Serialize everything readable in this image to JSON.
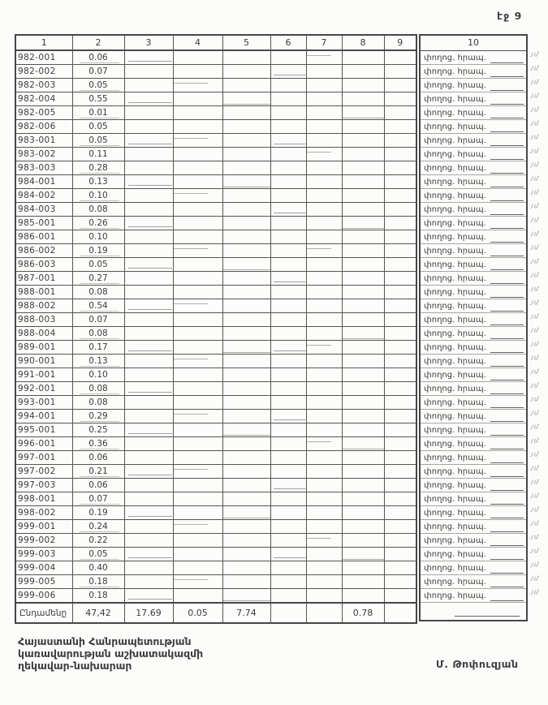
{
  "page": {
    "label": "էջ 9"
  },
  "colors": {
    "ink": "#3a3a3a",
    "border": "#4a4a4a",
    "paper": "#fcfcfa"
  },
  "table": {
    "headers": [
      "1",
      "2",
      "3",
      "4",
      "5",
      "6",
      "7",
      "8",
      "9",
      "10"
    ],
    "col10_text": "փողոց. հրապ.",
    "edge_mark": "յմ",
    "rows": [
      {
        "code": "982-001",
        "value": "0.06"
      },
      {
        "code": "982-002",
        "value": "0.07"
      },
      {
        "code": "982-003",
        "value": "0.05"
      },
      {
        "code": "982-004",
        "value": "0.55"
      },
      {
        "code": "982-005",
        "value": "0.01"
      },
      {
        "code": "982-006",
        "value": "0.05"
      },
      {
        "code": "983-001",
        "value": "0.05"
      },
      {
        "code": "983-002",
        "value": "0.11"
      },
      {
        "code": "983-003",
        "value": "0.28"
      },
      {
        "code": "984-001",
        "value": "0.13"
      },
      {
        "code": "984-002",
        "value": "0.10"
      },
      {
        "code": "984-003",
        "value": "0.08"
      },
      {
        "code": "985-001",
        "value": "0.26"
      },
      {
        "code": "986-001",
        "value": "0.10"
      },
      {
        "code": "986-002",
        "value": "0.19"
      },
      {
        "code": "986-003",
        "value": "0.05"
      },
      {
        "code": "987-001",
        "value": "0.27"
      },
      {
        "code": "988-001",
        "value": "0.08"
      },
      {
        "code": "988-002",
        "value": "0.54"
      },
      {
        "code": "988-003",
        "value": "0.07"
      },
      {
        "code": "988-004",
        "value": "0.08"
      },
      {
        "code": "989-001",
        "value": "0.17"
      },
      {
        "code": "990-001",
        "value": "0.13"
      },
      {
        "code": "991-001",
        "value": "0.10"
      },
      {
        "code": "992-001",
        "value": "0.08"
      },
      {
        "code": "993-001",
        "value": "0.08"
      },
      {
        "code": "994-001",
        "value": "0.29"
      },
      {
        "code": "995-001",
        "value": "0.25"
      },
      {
        "code": "996-001",
        "value": "0.36"
      },
      {
        "code": "997-001",
        "value": "0.06"
      },
      {
        "code": "997-002",
        "value": "0.21"
      },
      {
        "code": "997-003",
        "value": "0.06"
      },
      {
        "code": "998-001",
        "value": "0.07"
      },
      {
        "code": "998-002",
        "value": "0.19"
      },
      {
        "code": "999-001",
        "value": "0.24"
      },
      {
        "code": "999-002",
        "value": "0.22"
      },
      {
        "code": "999-003",
        "value": "0.05"
      },
      {
        "code": "999-004",
        "value": "0.40"
      },
      {
        "code": "999-005",
        "value": "0.18"
      },
      {
        "code": "999-006",
        "value": "0.18"
      }
    ],
    "total": {
      "label": "Ընդամենը",
      "values": [
        "47,42",
        "17.69",
        "0.05",
        "7.74",
        "",
        "",
        "0.78",
        ""
      ]
    }
  },
  "footer": {
    "lines": [
      "Հայաստանի Հանրապետության",
      "կառավարության աշխատակազմի",
      "ղեկավար-նախարար"
    ],
    "signature": "Մ. Թոփուզյան"
  }
}
